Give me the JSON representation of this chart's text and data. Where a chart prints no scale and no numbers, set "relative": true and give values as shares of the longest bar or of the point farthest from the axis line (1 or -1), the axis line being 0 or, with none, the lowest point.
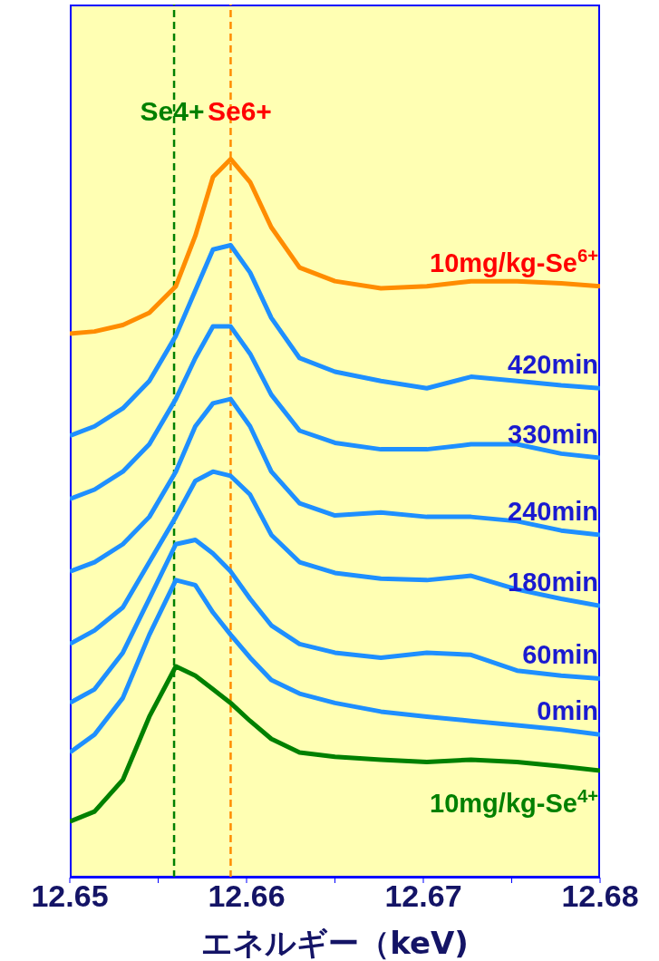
{
  "chart_data": {
    "type": "line",
    "relative": true,
    "xlabel": "エネルギー（keV)",
    "x": [
      12.65,
      12.6514,
      12.653,
      12.6545,
      12.656,
      12.6571,
      12.6581,
      12.6591,
      12.6602,
      12.6614,
      12.663,
      12.665,
      12.6676,
      12.6702,
      12.6727,
      12.6753,
      12.6778,
      12.68
    ],
    "xlim": [
      12.65,
      12.68
    ],
    "xticks": [
      12.65,
      {
        "value": 12.655,
        "label": null
      },
      12.66,
      {
        "value": 12.665,
        "label": null
      },
      12.67,
      {
        "value": 12.675,
        "label": null
      },
      12.68
    ],
    "marker": "none",
    "line_style": "solid",
    "series": [
      {
        "name": "10mg/kg-Se$^{6+}$",
        "color": "#ff8c00",
        "values": [
          0.757,
          0.76,
          0.769,
          0.786,
          0.823,
          0.893,
          0.975,
          1.0,
          0.968,
          0.905,
          0.849,
          0.83,
          0.82,
          0.823,
          0.83,
          0.83,
          0.827,
          0.823
        ]
      },
      {
        "name": "420min",
        "color": "#1e8fff",
        "values": [
          0.615,
          0.628,
          0.653,
          0.691,
          0.754,
          0.817,
          0.874,
          0.88,
          0.842,
          0.779,
          0.723,
          0.704,
          0.691,
          0.681,
          0.697,
          0.691,
          0.685,
          0.681
        ]
      },
      {
        "name": "330min",
        "color": "#1e8fff",
        "values": [
          0.527,
          0.54,
          0.565,
          0.603,
          0.666,
          0.723,
          0.767,
          0.767,
          0.729,
          0.672,
          0.622,
          0.605,
          0.596,
          0.596,
          0.603,
          0.603,
          0.59,
          0.584
        ]
      },
      {
        "name": "240min",
        "color": "#1e8fff",
        "values": [
          0.426,
          0.439,
          0.464,
          0.502,
          0.565,
          0.628,
          0.66,
          0.666,
          0.628,
          0.565,
          0.521,
          0.504,
          0.508,
          0.502,
          0.502,
          0.496,
          0.483,
          0.477
        ]
      },
      {
        "name": "180min",
        "color": "#1e8fff",
        "values": [
          0.325,
          0.344,
          0.376,
          0.439,
          0.502,
          0.552,
          0.565,
          0.559,
          0.533,
          0.477,
          0.439,
          0.424,
          0.416,
          0.414,
          0.42,
          0.401,
          0.388,
          0.378
        ]
      },
      {
        "name": "60min",
        "color": "#1e8fff",
        "values": [
          0.243,
          0.262,
          0.313,
          0.388,
          0.464,
          0.47,
          0.451,
          0.426,
          0.388,
          0.351,
          0.325,
          0.313,
          0.306,
          0.313,
          0.31,
          0.288,
          0.281,
          0.277
        ]
      },
      {
        "name": "0min",
        "color": "#1e8fff",
        "values": [
          0.174,
          0.199,
          0.25,
          0.338,
          0.414,
          0.407,
          0.369,
          0.338,
          0.306,
          0.275,
          0.256,
          0.243,
          0.231,
          0.224,
          0.218,
          0.212,
          0.206,
          0.199
        ]
      },
      {
        "name": "10mg/kg-Se$^{4+}$",
        "color": "#008000",
        "values": [
          0.078,
          0.092,
          0.136,
          0.224,
          0.294,
          0.281,
          0.262,
          0.243,
          0.218,
          0.193,
          0.174,
          0.168,
          0.164,
          0.161,
          0.164,
          0.161,
          0.155,
          0.149
        ]
      }
    ],
    "ref_lines": [
      {
        "axis": "x",
        "value": 12.6559,
        "label": "Se4+",
        "color": "#008000",
        "line_style": "dashed"
      },
      {
        "axis": "x",
        "value": 12.6591,
        "label": "Se6+",
        "color": "#ff8c00",
        "line_style": "dashed"
      }
    ]
  }
}
